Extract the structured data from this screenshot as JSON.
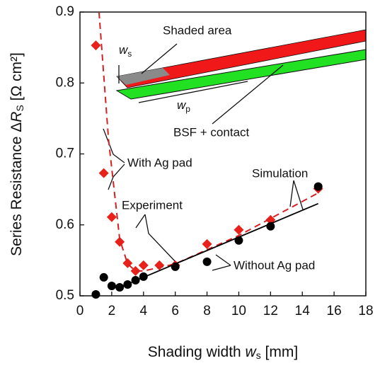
{
  "chart_data": {
    "type": "scatter",
    "xlabel": {
      "main": "Shading width ",
      "var": "w",
      "sub": "s",
      "unit": "  [mm]"
    },
    "ylabel": {
      "main": "Series Resistance Δ",
      "var": "R",
      "sub": "S",
      "unit": " [Ω cm²]"
    },
    "xlim": [
      0,
      18
    ],
    "xticks": [
      0,
      2,
      4,
      6,
      8,
      10,
      12,
      14,
      16,
      18
    ],
    "ylim": [
      0.5,
      0.9
    ],
    "yticks": [
      0.5,
      0.6,
      0.7,
      0.8,
      0.9
    ],
    "series": [
      {
        "style": "diamond",
        "color": "#e8221b",
        "x": [
          1,
          1.5,
          2,
          2.5,
          3,
          3.5,
          4,
          5,
          6,
          8,
          10,
          12,
          15
        ],
        "values": [
          0.853,
          0.673,
          0.611,
          0.576,
          0.546,
          0.535,
          0.543,
          0.543,
          0.543,
          0.573,
          0.593,
          0.607,
          0.651
        ]
      },
      {
        "style": "circle",
        "color": "#000000",
        "x": [
          1,
          1.5,
          2,
          2.5,
          3,
          3.5,
          4,
          6,
          8,
          10,
          12,
          15
        ],
        "values": [
          0.502,
          0.526,
          0.514,
          0.512,
          0.516,
          0.522,
          0.527,
          0.541,
          0.548,
          0.578,
          0.598,
          0.654
        ]
      },
      {
        "style": "dashed",
        "color": "#d42020",
        "x": [
          1.2,
          1.8,
          2.5,
          3,
          3.5,
          4,
          6,
          10,
          15
        ],
        "values": [
          0.9,
          0.72,
          0.58,
          0.545,
          0.535,
          0.535,
          0.545,
          0.585,
          0.645
        ]
      },
      {
        "style": "solid",
        "color": "#000000",
        "x": [
          2.3,
          15
        ],
        "values": [
          0.51,
          0.63
        ]
      }
    ],
    "annotations": {
      "shaded_area": "Shaded area",
      "ws": {
        "var": "w",
        "sub": "s"
      },
      "wp": {
        "var": "w",
        "sub": "p"
      },
      "bsf": "BSF + contact",
      "with_ag": "With Ag pad",
      "experiment": "Experiment",
      "simulation": "Simulation",
      "without_ag": "Without Ag pad"
    }
  }
}
